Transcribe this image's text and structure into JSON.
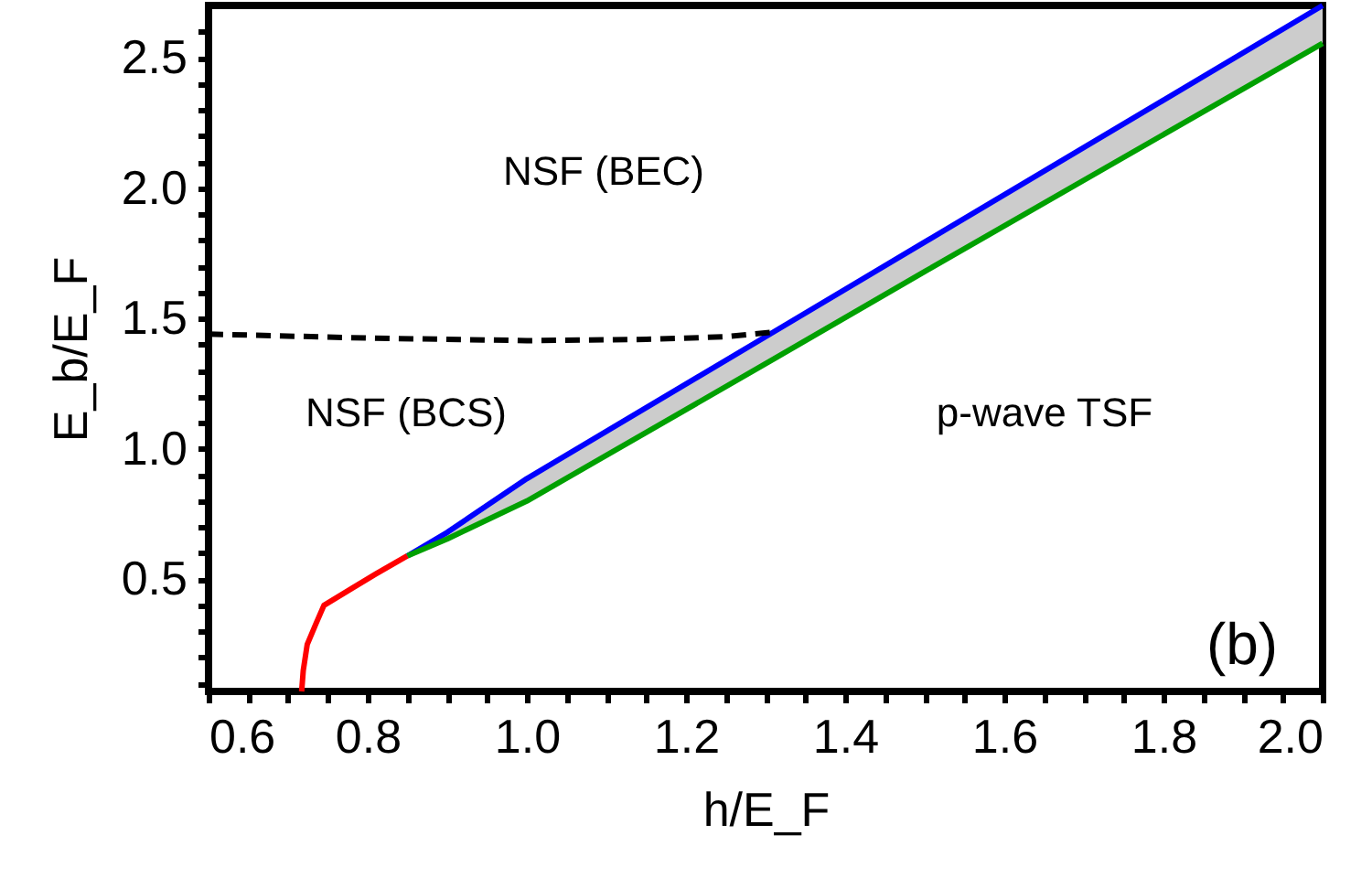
{
  "chart_data": {
    "type": "line",
    "xlabel": "h/E_F",
    "ylabel": "E_b/E_F",
    "xlim": [
      0.6,
      2.0
    ],
    "ylim": [
      0.07,
      2.7
    ],
    "xticks": [
      0.6,
      {
        "value": 0.65,
        "label": null
      },
      {
        "value": 0.7,
        "label": null
      },
      {
        "value": 0.75,
        "label": null
      },
      0.8,
      {
        "value": 0.85,
        "label": null
      },
      {
        "value": 0.9,
        "label": null
      },
      {
        "value": 0.95,
        "label": null
      },
      {
        "value": 1.0,
        "label": "1.0"
      },
      {
        "value": 1.05,
        "label": null
      },
      {
        "value": 1.1,
        "label": null
      },
      {
        "value": 1.15,
        "label": null
      },
      1.2,
      {
        "value": 1.25,
        "label": null
      },
      {
        "value": 1.3,
        "label": null
      },
      {
        "value": 1.35,
        "label": null
      },
      1.4,
      {
        "value": 1.45,
        "label": null
      },
      {
        "value": 1.5,
        "label": null
      },
      {
        "value": 1.55,
        "label": null
      },
      1.6,
      {
        "value": 1.65,
        "label": null
      },
      {
        "value": 1.7,
        "label": null
      },
      {
        "value": 1.75,
        "label": null
      },
      1.8,
      {
        "value": 1.85,
        "label": null
      },
      {
        "value": 1.9,
        "label": null
      },
      {
        "value": 1.95,
        "label": null
      },
      {
        "value": 2.0,
        "label": "2.0"
      }
    ],
    "yticks": [
      {
        "value": 0.1,
        "label": null
      },
      {
        "value": 0.2,
        "label": null
      },
      {
        "value": 0.3,
        "label": null
      },
      {
        "value": 0.4,
        "label": null
      },
      0.5,
      {
        "value": 0.6,
        "label": null
      },
      {
        "value": 0.7,
        "label": null
      },
      {
        "value": 0.8,
        "label": null
      },
      {
        "value": 0.9,
        "label": null
      },
      {
        "value": 1.0,
        "label": "1.0"
      },
      {
        "value": 1.1,
        "label": null
      },
      {
        "value": 1.2,
        "label": null
      },
      {
        "value": 1.3,
        "label": null
      },
      {
        "value": 1.4,
        "label": null
      },
      1.5,
      {
        "value": 1.6,
        "label": null
      },
      {
        "value": 1.7,
        "label": null
      },
      {
        "value": 1.8,
        "label": null
      },
      {
        "value": 1.9,
        "label": null
      },
      {
        "value": 2.0,
        "label": "2.0"
      },
      {
        "value": 2.1,
        "label": null
      },
      {
        "value": 2.2,
        "label": null
      },
      {
        "value": 2.3,
        "label": null
      },
      {
        "value": 2.4,
        "label": null
      },
      2.5,
      {
        "value": 2.6,
        "label": null
      }
    ],
    "grid": false,
    "marker": "none",
    "series": [
      {
        "color": "#ff0000",
        "x": [
          0.717,
          0.719,
          0.724,
          0.735,
          0.745,
          0.78,
          0.81,
          0.85
        ],
        "values": [
          0.07,
          0.15,
          0.25,
          0.33,
          0.4,
          0.465,
          0.52,
          0.59
        ]
      },
      {
        "color": "#0000ff",
        "x": [
          0.85,
          0.9,
          1.0,
          1.31,
          1.5,
          2.0
        ],
        "values": [
          0.59,
          0.68,
          0.886,
          1.448,
          1.793,
          2.7
        ],
        "lower": [
          0.59,
          0.655,
          0.8,
          1.344,
          1.68,
          2.555
        ],
        "upper": [
          0.59,
          0.68,
          0.886,
          1.448,
          1.793,
          2.7
        ]
      },
      {
        "color": "#00a000",
        "x": [
          0.85,
          0.9,
          1.0,
          1.31,
          1.5,
          2.0
        ],
        "values": [
          0.59,
          0.655,
          0.8,
          1.344,
          1.68,
          2.555
        ]
      },
      {
        "color": "#000000",
        "line_style": "dashed",
        "x": [
          0.6,
          0.8,
          1.0,
          1.15,
          1.25,
          1.31
        ],
        "values": [
          1.44,
          1.425,
          1.415,
          1.42,
          1.43,
          1.448
        ]
      }
    ],
    "annotations": [
      "NSF (BEC)",
      "NSF (BCS)",
      "p-wave TSF",
      "(b)"
    ]
  }
}
